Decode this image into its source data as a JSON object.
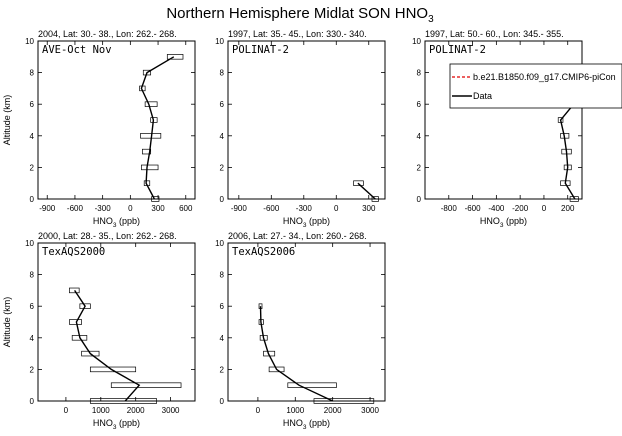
{
  "figure": {
    "title": "Northern Hemisphere Midlat SON HNO",
    "title_sub": "3"
  },
  "legend": {
    "entries": [
      {
        "label": "b.e21.B1850.f09_g17.CMIP6-piCon",
        "color": "#e00000",
        "dash": true
      },
      {
        "label": "Data",
        "color": "#000000",
        "dash": false
      }
    ]
  },
  "chart_data": [
    {
      "type": "line",
      "header": "2004, Lat: 30.- 38., Lon: 262.- 268.",
      "campaign": "AVE-Oct Nov",
      "xlabel": "HNO",
      "xlabel_sub": "3",
      "xlabel_unit": " (ppb)",
      "ylabel": "Altitude (km)",
      "xlim": [
        -1000,
        700
      ],
      "ylim": [
        0,
        10
      ],
      "xticks": [
        -900,
        -600,
        -300,
        0,
        300,
        600
      ],
      "yticks": [
        0,
        2,
        4,
        6,
        8,
        10
      ],
      "series": [
        {
          "name": "Data",
          "x": [
            260,
            170,
            180,
            210,
            230,
            250,
            200,
            120,
            180,
            470
          ],
          "y": [
            0,
            1,
            2,
            3,
            4,
            5,
            6,
            7,
            8,
            9
          ]
        }
      ],
      "boxes": [
        [
          230,
          310,
          0
        ],
        [
          150,
          210,
          1
        ],
        [
          120,
          300,
          2
        ],
        [
          130,
          220,
          3
        ],
        [
          110,
          330,
          4
        ],
        [
          220,
          290,
          5
        ],
        [
          160,
          290,
          6
        ],
        [
          100,
          160,
          7
        ],
        [
          140,
          220,
          8
        ],
        [
          400,
          570,
          9
        ]
      ]
    },
    {
      "type": "line",
      "header": "1997, Lat: 35.- 45., Lon: 330.- 340.",
      "campaign": "POLINAT-2",
      "xlabel": "HNO",
      "xlabel_sub": "3",
      "xlabel_unit": " (ppb)",
      "ylabel": "",
      "xlim": [
        -1000,
        450
      ],
      "ylim": [
        0,
        10
      ],
      "xticks": [
        -900,
        -600,
        -300,
        0,
        300
      ],
      "yticks": [
        0,
        2,
        4,
        6,
        8,
        10
      ],
      "series": [
        {
          "name": "Data",
          "x": [
            360,
            200
          ],
          "y": [
            0,
            1
          ]
        }
      ],
      "boxes": [
        [
          330,
          390,
          0
        ],
        [
          160,
          250,
          1
        ]
      ]
    },
    {
      "type": "line",
      "header": "1997, Lat: 50.- 60., Lon: 345.- 355.",
      "campaign": "POLINAT-2",
      "xlabel": "HNO",
      "xlabel_sub": "3",
      "xlabel_unit": " (ppb)",
      "ylabel": "",
      "xlim": [
        -1000,
        320
      ],
      "ylim": [
        0,
        10
      ],
      "xticks": [
        -800,
        -600,
        -400,
        -200,
        0,
        200
      ],
      "yticks": [
        0,
        2,
        4,
        6,
        8,
        10
      ],
      "series": [
        {
          "name": "Data",
          "x": [
            260,
            180,
            200,
            190,
            170,
            140,
            250,
            220
          ],
          "y": [
            0,
            1,
            2,
            3,
            4,
            5,
            6,
            7
          ]
        }
      ],
      "boxes": [
        [
          220,
          290,
          0
        ],
        [
          140,
          220,
          1
        ],
        [
          170,
          230,
          2
        ],
        [
          150,
          230,
          3
        ],
        [
          140,
          210,
          4
        ],
        [
          120,
          160,
          5
        ],
        [
          210,
          300,
          6
        ],
        [
          190,
          260,
          7
        ]
      ]
    },
    {
      "type": "line",
      "header": "2000, Lat: 28.- 35., Lon: 262.- 268.",
      "campaign": "TexAQS2000",
      "xlabel": "HNO",
      "xlabel_sub": "3",
      "xlabel_unit": " (ppb)",
      "ylabel": "Altitude (km)",
      "xlim": [
        -800,
        3700
      ],
      "ylim": [
        0,
        10
      ],
      "xticks": [
        0,
        1000,
        2000,
        3000
      ],
      "yticks": [
        0,
        2,
        4,
        6,
        8,
        10
      ],
      "series": [
        {
          "name": "Data",
          "x": [
            1700,
            2100,
            1300,
            700,
            400,
            300,
            550,
            250
          ],
          "y": [
            0,
            1,
            2,
            3,
            4,
            5,
            6,
            7
          ]
        }
      ],
      "boxes": [
        [
          700,
          2600,
          0
        ],
        [
          1300,
          3300,
          1
        ],
        [
          700,
          2000,
          2
        ],
        [
          450,
          950,
          3
        ],
        [
          180,
          600,
          4
        ],
        [
          100,
          450,
          5
        ],
        [
          400,
          700,
          6
        ],
        [
          100,
          380,
          7
        ]
      ]
    },
    {
      "type": "line",
      "header": "2006, Lat: 27.- 34., Lon: 260.- 268.",
      "campaign": "TexAQS2006",
      "xlabel": "HNO",
      "xlabel_sub": "3",
      "xlabel_unit": " (ppb)",
      "ylabel": "",
      "xlim": [
        -800,
        3400
      ],
      "ylim": [
        0,
        10
      ],
      "xticks": [
        0,
        1000,
        2000,
        3000
      ],
      "yticks": [
        0,
        2,
        4,
        6,
        8,
        10
      ],
      "series": [
        {
          "name": "Data",
          "x": [
            2000,
            1100,
            500,
            280,
            150,
            80,
            70
          ],
          "y": [
            0,
            1,
            2,
            3,
            4,
            5,
            6
          ]
        }
      ],
      "boxes": [
        [
          1500,
          3100,
          0
        ],
        [
          800,
          2100,
          1
        ],
        [
          300,
          700,
          2
        ],
        [
          150,
          450,
          3
        ],
        [
          60,
          250,
          4
        ],
        [
          30,
          150,
          5
        ],
        [
          30,
          110,
          6
        ]
      ]
    }
  ]
}
